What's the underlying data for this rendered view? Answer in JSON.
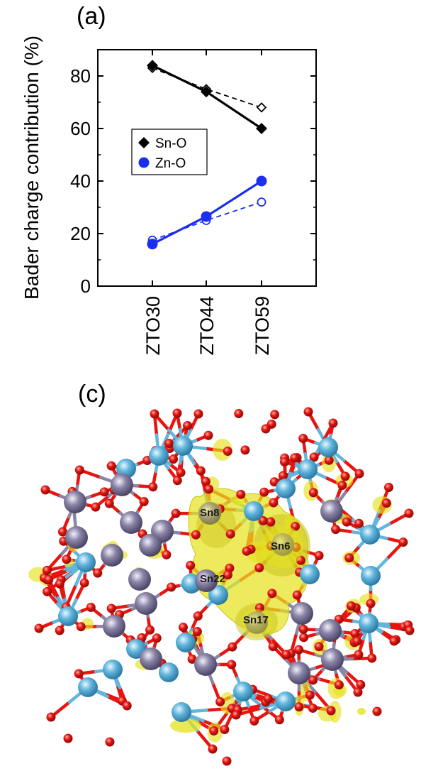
{
  "panel_a": {
    "label": "(a)"
  },
  "panel_c": {
    "label": "(c)",
    "atom_labels": [
      "Sn8",
      "Sn6",
      "Sn22",
      "Sn17"
    ]
  },
  "colors": {
    "sn_o": "#000000",
    "zn_o": "#1a2ff0",
    "sn_atom": "#8a84a6",
    "zn_atom": "#62b6dd",
    "o_atom": "#e8140f",
    "isosurface": "#e6e21e"
  },
  "chart_data": {
    "type": "line",
    "ylabel": "Bader charge contribution (%)",
    "xlabel": "",
    "categories": [
      "ZTO30",
      "ZTO44",
      "ZTO59"
    ],
    "ylim": [
      0,
      90
    ],
    "yticks": [
      0,
      20,
      40,
      60,
      80
    ],
    "grid": false,
    "legend_position": "middle-left",
    "series": [
      {
        "name": "Sn-O",
        "style": "solid",
        "marker": "filled-diamond",
        "color": "#000000",
        "values": [
          84,
          74,
          60
        ]
      },
      {
        "name": "",
        "style": "dashed",
        "marker": "open-diamond",
        "color": "#000000",
        "values": [
          83,
          75,
          68
        ]
      },
      {
        "name": "Zn-O",
        "style": "solid",
        "marker": "filled-circle",
        "color": "#1a2ff0",
        "values": [
          16,
          26.5,
          40
        ]
      },
      {
        "name": "",
        "style": "dashed",
        "marker": "open-circle",
        "color": "#1a2ff0",
        "values": [
          17.5,
          25,
          32
        ]
      }
    ]
  }
}
